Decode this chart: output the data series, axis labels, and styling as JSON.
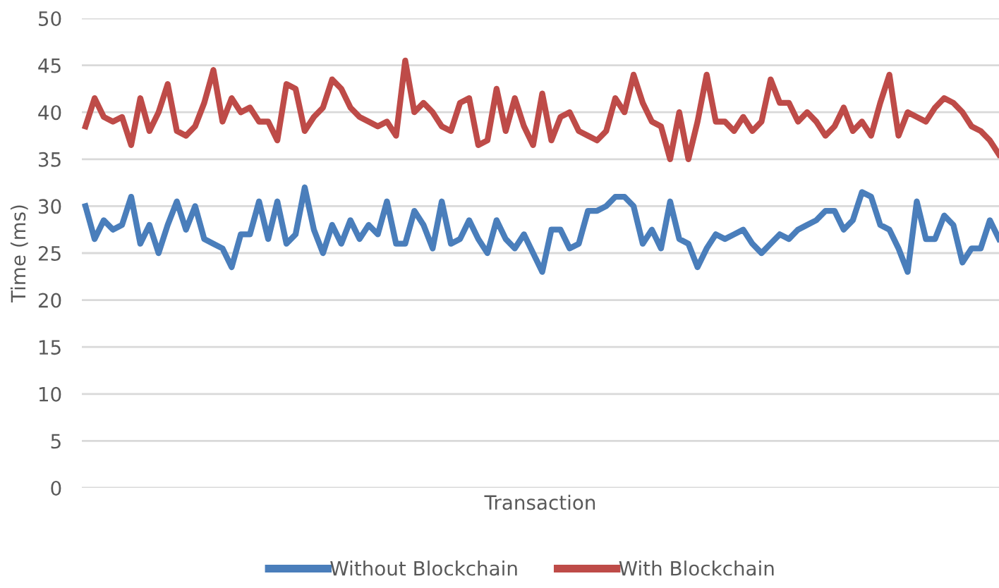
{
  "chart_data": {
    "type": "line",
    "xlabel": "Transaction",
    "ylabel": "Time (ms)",
    "ylim": [
      0,
      50
    ],
    "yticks": [
      0,
      5,
      10,
      15,
      20,
      25,
      30,
      35,
      40,
      45,
      50
    ],
    "grid": "y",
    "legend": "bottom",
    "marker": "none",
    "line_style": "solid",
    "categories": [
      null,
      null,
      null,
      null,
      null,
      null,
      null,
      null,
      null,
      null,
      null,
      null,
      null,
      null,
      null,
      null,
      null,
      null,
      null,
      null,
      null,
      null,
      null,
      null,
      null,
      null,
      null,
      null,
      null,
      null,
      null,
      null,
      null,
      null,
      null,
      null,
      null,
      null,
      null,
      null,
      null,
      null,
      null,
      null,
      null,
      null,
      null,
      null,
      null,
      null,
      null,
      null,
      null,
      null,
      null,
      null,
      null,
      null,
      null,
      null,
      null,
      null,
      null,
      null,
      null,
      null,
      null,
      null,
      null,
      null,
      null,
      null,
      null,
      null,
      null,
      null,
      null,
      null,
      null,
      null,
      null,
      null,
      null,
      null,
      null,
      null,
      null,
      null,
      null,
      null,
      null,
      null,
      null,
      null,
      null,
      null,
      null,
      null,
      null,
      null,
      null
    ],
    "series": [
      {
        "name": "Without Blockchain",
        "color": "#4a7ebb",
        "values": [
          30,
          26.5,
          28.5,
          27.5,
          28,
          31,
          26,
          28,
          25,
          28,
          30.5,
          27.5,
          30,
          26.5,
          26,
          25.5,
          23.5,
          27,
          27,
          30.5,
          26.5,
          30.5,
          26,
          27,
          32,
          27.5,
          25,
          28,
          26,
          28.5,
          26.5,
          28,
          27,
          30.5,
          26,
          26,
          29.5,
          28,
          25.5,
          30.5,
          26,
          26.5,
          28.5,
          26.5,
          25,
          28.5,
          26.5,
          25.5,
          27,
          25,
          23,
          27.5,
          27.5,
          25.5,
          26,
          29.5,
          29.5,
          30,
          31,
          31,
          30,
          26,
          27.5,
          25.5,
          30.5,
          26.5,
          26,
          23.5,
          25.5,
          27,
          26.5,
          27,
          27.5,
          26,
          25,
          26,
          27,
          26.5,
          27.5,
          28,
          28.5,
          29.5,
          29.5,
          27.5,
          28.5,
          31.5,
          31,
          28,
          27.5,
          25.5,
          23,
          30.5,
          26.5,
          26.5,
          29,
          28,
          24,
          25.5,
          25.5,
          28.5,
          26.5
        ]
      },
      {
        "name": "With Blockchain",
        "color": "#be4b48",
        "values": [
          38.5,
          41.5,
          39.5,
          39,
          39.5,
          36.5,
          41.5,
          38,
          40,
          43,
          38,
          37.5,
          38.5,
          41,
          44.5,
          39,
          41.5,
          40,
          40.5,
          39,
          39,
          37,
          43,
          42.5,
          38,
          39.5,
          40.5,
          43.5,
          42.5,
          40.5,
          39.5,
          39,
          38.5,
          39,
          37.5,
          45.5,
          40,
          41,
          40,
          38.5,
          38,
          41,
          41.5,
          36.5,
          37,
          42.5,
          38,
          41.5,
          38.5,
          36.5,
          42,
          37,
          39.5,
          40,
          38,
          37.5,
          37,
          38,
          41.5,
          40,
          44,
          41,
          39,
          38.5,
          35,
          40,
          35,
          39,
          44,
          39,
          39,
          38,
          39.5,
          38,
          39,
          43.5,
          41,
          41,
          39,
          40,
          39,
          37.5,
          38.5,
          40.5,
          38,
          39,
          37.5,
          41,
          44,
          37.5,
          40,
          39.5,
          39,
          40.5,
          41.5,
          41,
          40,
          38.5,
          38,
          37,
          35.5
        ]
      }
    ]
  }
}
